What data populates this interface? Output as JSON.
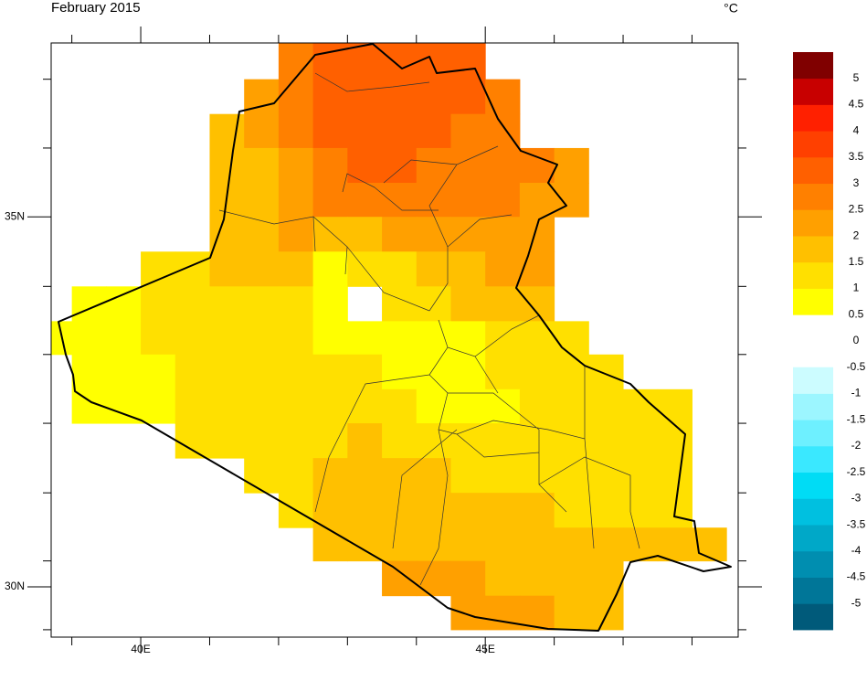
{
  "chart_data": {
    "type": "gridmap",
    "title": "February 2015",
    "units": "°C",
    "xlim": [
      38.7,
      48.67
    ],
    "ylim": [
      29.32,
      37.35
    ],
    "xticks": [
      {
        "value": 40,
        "label": "40E"
      },
      {
        "value": 45,
        "label": "45E"
      }
    ],
    "yticks": [
      {
        "value": 30,
        "label": "30N"
      },
      {
        "value": 35,
        "label": "35N"
      }
    ],
    "xminor": [
      39,
      41,
      42,
      43,
      44,
      46,
      47,
      48
    ],
    "yminor": [
      36.86,
      35.93,
      34.06,
      33.14,
      32.21,
      31.27,
      30.35,
      29.42
    ],
    "lon_edges": [
      38.5,
      39,
      39.5,
      40,
      40.5,
      41,
      41.5,
      42,
      42.5,
      43,
      43.5,
      44,
      44.5,
      45,
      45.5,
      46,
      46.5,
      47,
      47.5,
      48,
      48.5
    ],
    "lat_edges": [
      37.35,
      36.86,
      36.39,
      35.93,
      35.46,
      35.0,
      34.53,
      34.06,
      33.59,
      33.14,
      32.67,
      32.21,
      31.74,
      31.27,
      30.8,
      30.35,
      29.88,
      29.42
    ],
    "values": [
      [
        null,
        null,
        null,
        null,
        null,
        null,
        null,
        2.75,
        3.25,
        3.25,
        3.25,
        3.25,
        3.25,
        null,
        null,
        null,
        null,
        null,
        null,
        null
      ],
      [
        null,
        null,
        null,
        null,
        null,
        null,
        2.25,
        2.75,
        3.25,
        3.25,
        3.25,
        3.25,
        3.25,
        2.75,
        null,
        null,
        null,
        null,
        null,
        null
      ],
      [
        null,
        null,
        null,
        null,
        null,
        1.75,
        2.25,
        2.75,
        3.25,
        3.25,
        3.25,
        3.25,
        2.75,
        2.75,
        null,
        null,
        null,
        null,
        null,
        null
      ],
      [
        null,
        null,
        null,
        null,
        null,
        1.75,
        1.75,
        2.25,
        2.75,
        3.25,
        3.25,
        2.75,
        2.75,
        2.75,
        2.75,
        2.25,
        null,
        null,
        null,
        null
      ],
      [
        null,
        null,
        null,
        null,
        null,
        1.75,
        1.75,
        2.25,
        2.75,
        2.75,
        2.75,
        2.75,
        2.75,
        2.75,
        2.25,
        2.25,
        null,
        null,
        null,
        null
      ],
      [
        null,
        null,
        null,
        null,
        null,
        1.75,
        1.75,
        2.25,
        1.75,
        1.75,
        2.25,
        2.25,
        2.25,
        2.25,
        2.25,
        null,
        null,
        null,
        null,
        null
      ],
      [
        null,
        null,
        null,
        1.25,
        1.25,
        1.75,
        1.75,
        1.75,
        0.75,
        1.25,
        1.25,
        1.75,
        1.75,
        2.25,
        2.25,
        null,
        null,
        null,
        null,
        null
      ],
      [
        null,
        0.75,
        0.75,
        1.25,
        1.25,
        1.25,
        1.25,
        1.25,
        0.75,
        null,
        1.25,
        1.25,
        1.75,
        1.75,
        1.75,
        null,
        null,
        null,
        null,
        null
      ],
      [
        0.75,
        0.75,
        0.75,
        1.25,
        1.25,
        1.25,
        1.25,
        1.25,
        0.75,
        0.75,
        0.75,
        0.75,
        0.75,
        1.25,
        1.25,
        1.25,
        null,
        null,
        null,
        null
      ],
      [
        null,
        0.75,
        0.75,
        0.75,
        1.25,
        1.25,
        1.25,
        1.25,
        1.25,
        1.25,
        0.75,
        0.75,
        0.75,
        1.25,
        1.25,
        1.25,
        1.25,
        null,
        null,
        null
      ],
      [
        null,
        0.75,
        0.75,
        0.75,
        1.25,
        1.25,
        1.25,
        1.25,
        1.25,
        1.25,
        1.25,
        0.75,
        0.75,
        0.75,
        1.25,
        1.25,
        1.25,
        1.25,
        1.25,
        null
      ],
      [
        null,
        null,
        null,
        null,
        1.25,
        1.25,
        1.25,
        1.25,
        1.25,
        1.75,
        1.25,
        1.25,
        1.25,
        1.25,
        1.25,
        1.25,
        1.25,
        1.25,
        1.25,
        null
      ],
      [
        null,
        null,
        null,
        null,
        null,
        null,
        1.25,
        1.25,
        1.75,
        1.75,
        1.75,
        1.75,
        1.25,
        1.25,
        1.25,
        1.25,
        1.25,
        1.25,
        1.25,
        null
      ],
      [
        null,
        null,
        null,
        null,
        null,
        null,
        null,
        1.25,
        1.75,
        1.75,
        1.75,
        1.75,
        1.75,
        1.75,
        1.75,
        1.25,
        1.25,
        1.25,
        1.25,
        null
      ],
      [
        null,
        null,
        null,
        null,
        null,
        null,
        null,
        null,
        1.75,
        1.75,
        1.75,
        1.75,
        1.75,
        1.75,
        1.75,
        1.75,
        1.75,
        1.75,
        1.75,
        1.75
      ],
      [
        null,
        null,
        null,
        null,
        null,
        null,
        null,
        null,
        null,
        null,
        2.25,
        2.25,
        2.25,
        1.75,
        1.75,
        1.75,
        1.75,
        null,
        null,
        null
      ],
      [
        null,
        null,
        null,
        null,
        null,
        null,
        null,
        null,
        null,
        null,
        null,
        null,
        2.25,
        2.25,
        2.25,
        1.75,
        1.75,
        null,
        null,
        null
      ]
    ],
    "colorbar": {
      "levels": [
        -5,
        -4.5,
        -4,
        -3.5,
        -3,
        -2.5,
        -2,
        -1.5,
        -1,
        -0.5,
        0,
        0.5,
        1,
        1.5,
        2,
        2.5,
        3,
        3.5,
        4,
        4.5,
        5
      ],
      "colors": [
        "#005a7a",
        "#007698",
        "#008eb0",
        "#00a8c8",
        "#00c0e0",
        "#00dcf5",
        "#3ae8ff",
        "#6ef0ff",
        "#9cf6ff",
        "#ccfcff",
        null,
        null,
        "#ffff00",
        "#ffe000",
        "#ffc000",
        "#ffa000",
        "#ff8000",
        "#ff6000",
        "#ff4000",
        "#ff2000",
        "#c80000",
        "#800000"
      ]
    }
  }
}
